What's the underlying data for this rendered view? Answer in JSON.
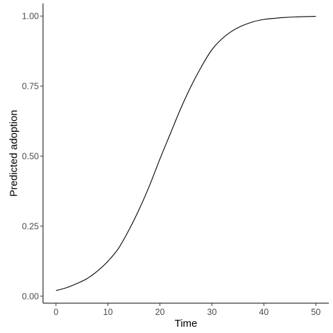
{
  "chart_data": {
    "type": "line",
    "title": "",
    "xlabel": "Time",
    "ylabel": "Predicted adoption",
    "xlim": [
      -2.5,
      52.5
    ],
    "ylim": [
      -0.025,
      1.045
    ],
    "x_ticks": [
      0,
      10,
      20,
      30,
      40,
      50
    ],
    "x_tick_labels": [
      "0",
      "10",
      "20",
      "30",
      "40",
      "50"
    ],
    "y_ticks": [
      0,
      0.25,
      0.5,
      0.75,
      1
    ],
    "y_tick_labels": [
      "0.00",
      "0.25",
      "0.50",
      "0.75",
      "1.00"
    ],
    "grid": false,
    "series": [
      {
        "color": "#000000",
        "x": [
          0,
          2,
          4,
          6,
          8,
          10,
          12,
          14,
          16,
          18,
          20,
          22,
          24,
          26,
          28,
          30,
          32,
          34,
          36,
          38,
          40,
          42,
          44,
          46,
          48,
          50
        ],
        "y": [
          0.02,
          0.03,
          0.045,
          0.063,
          0.09,
          0.125,
          0.17,
          0.235,
          0.31,
          0.395,
          0.49,
          0.58,
          0.67,
          0.75,
          0.82,
          0.88,
          0.92,
          0.948,
          0.967,
          0.98,
          0.988,
          0.992,
          0.995,
          0.997,
          0.998,
          0.999
        ]
      }
    ]
  }
}
